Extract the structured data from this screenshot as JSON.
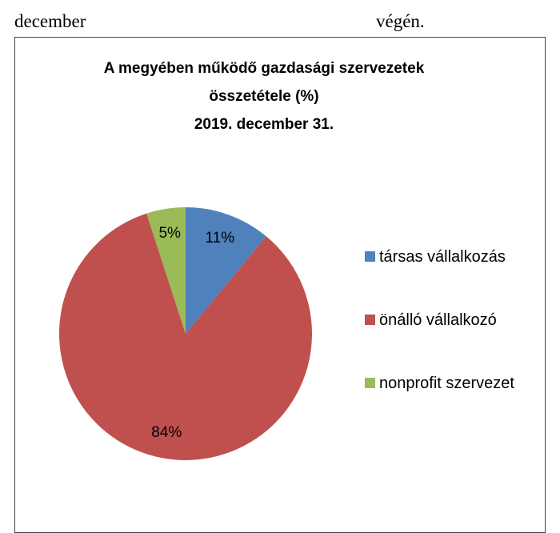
{
  "header_text": [
    "december",
    "végén."
  ],
  "chart_data": {
    "type": "pie",
    "title": "A megyében működő gazdasági szervezetek összetétele (%)",
    "subtitle": "2019. december 31.",
    "categories": [
      "társas vállalkozás",
      "önálló vállalkozó",
      "nonprofit szervezet"
    ],
    "values": [
      11,
      84,
      5
    ],
    "value_labels": [
      "11%",
      "84%",
      "5%"
    ],
    "colors": [
      "#4f81bd",
      "#c0504d",
      "#9bbb59"
    ],
    "legend": "right"
  }
}
